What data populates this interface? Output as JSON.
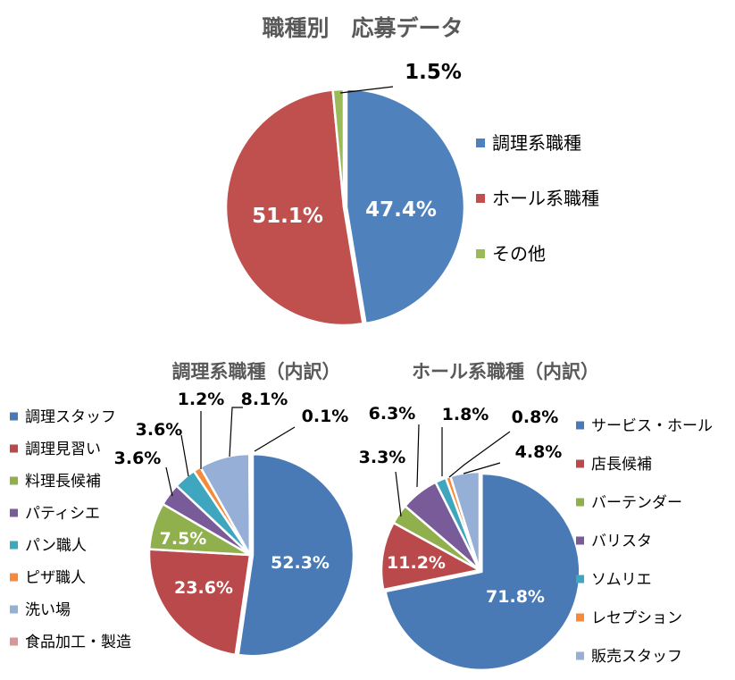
{
  "colors": {
    "blue": "#4f81bd",
    "red": "#c0504d",
    "green": "#9bbb59",
    "purple": "#8064a2",
    "teal": "#4bacc6",
    "orange": "#f79646",
    "lightblue": "#95b3d7",
    "pink": "#d99694",
    "darkblue": "#4a7ab5"
  },
  "chart_data": [
    {
      "type": "pie",
      "title": "職種別　応募データ",
      "series": [
        {
          "categories": [
            "調理系職種",
            "ホール系職種",
            "その他"
          ],
          "values": [
            47.4,
            51.1,
            1.5
          ],
          "labels": [
            "47.4%",
            "51.1%",
            "1.5%"
          ],
          "colors": [
            "#4f81bd",
            "#c0504d",
            "#9bbb59"
          ]
        }
      ],
      "legend": "right"
    },
    {
      "type": "pie",
      "title": "調理系職種（内訳）",
      "series": [
        {
          "categories": [
            "調理スタッフ",
            "調理見習い",
            "料理長候補",
            "パティシエ",
            "パン職人",
            "ピザ職人",
            "洗い場",
            "食品加工・製造"
          ],
          "values": [
            52.3,
            23.6,
            7.5,
            3.6,
            3.6,
            1.2,
            8.1,
            0.1
          ],
          "labels": [
            "52.3%",
            "23.6%",
            "7.5%",
            "3.6%",
            "3.6%",
            "1.2%",
            "8.1%",
            "0.1%"
          ],
          "colors": [
            "#4a7ab5",
            "#b9494a",
            "#8fb04d",
            "#7a5b9a",
            "#3ea6be",
            "#f68a3a",
            "#95afd6",
            "#d99694"
          ]
        }
      ],
      "legend": "left"
    },
    {
      "type": "pie",
      "title": "ホール系職種（内訳）",
      "series": [
        {
          "categories": [
            "サービス・ホール",
            "店長候補",
            "バーテンダー",
            "バリスタ",
            "ソムリエ",
            "レセプション",
            "販売スタッフ"
          ],
          "values": [
            71.8,
            11.2,
            3.3,
            6.3,
            1.8,
            0.8,
            4.8
          ],
          "labels": [
            "71.8%",
            "11.2%",
            "3.3%",
            "6.3%",
            "1.8%",
            "0.8%",
            "4.8%"
          ],
          "colors": [
            "#4a7ab5",
            "#b9494a",
            "#8fb04d",
            "#7a5b9a",
            "#3ea6be",
            "#f68a3a",
            "#95afd6"
          ]
        }
      ],
      "legend": "right"
    }
  ]
}
